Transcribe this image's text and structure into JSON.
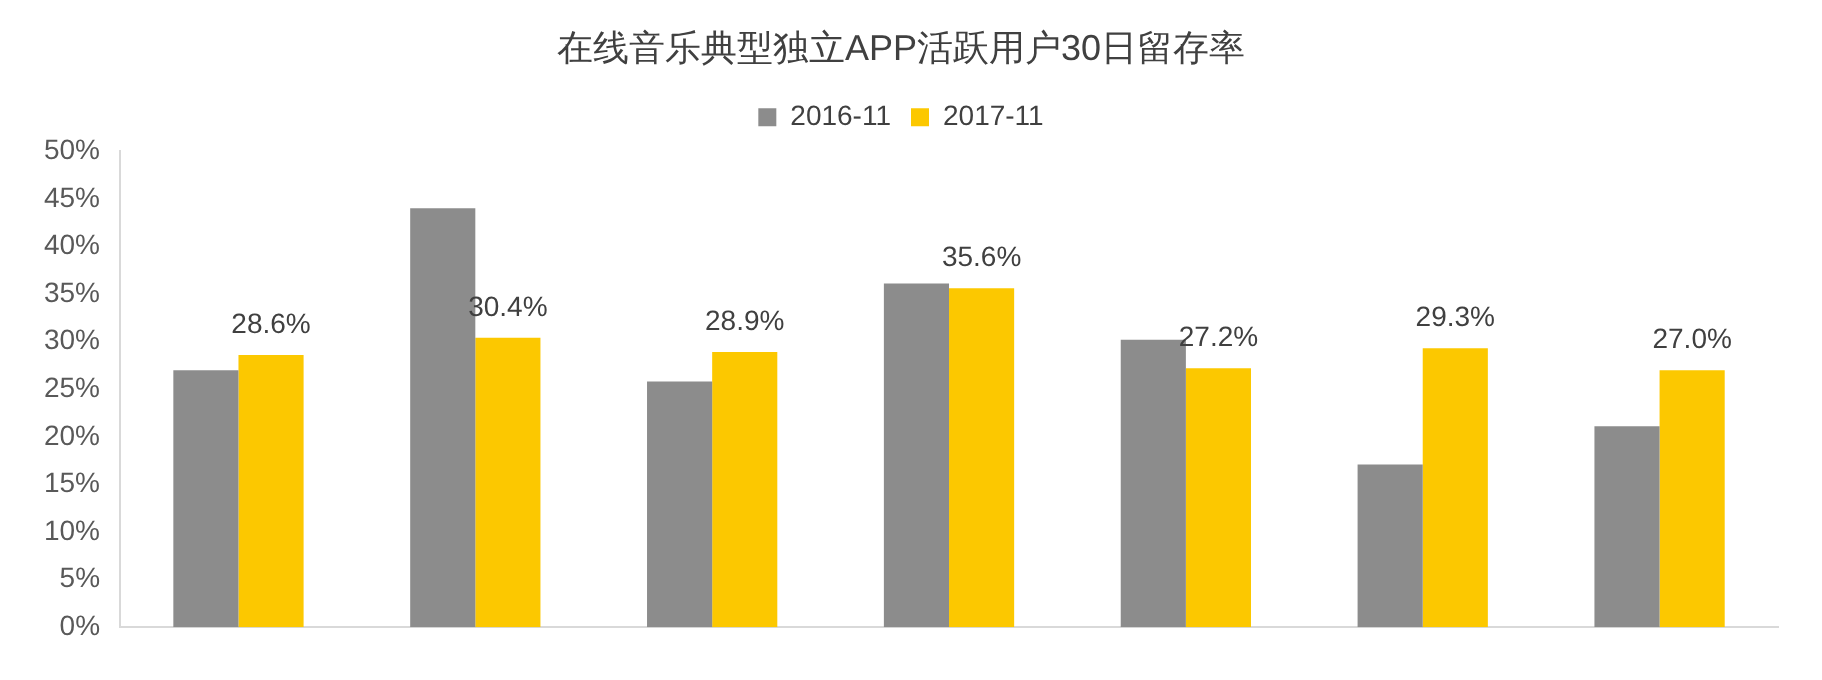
{
  "chart_data": {
    "type": "bar",
    "title": "在线音乐典型独立APP活跃用户30日留存率",
    "categories": [
      null,
      null,
      null,
      null,
      null,
      null,
      null
    ],
    "series": [
      {
        "name": "2016-11",
        "color": "#8c8c8c",
        "values": [
          27.0,
          44.0,
          25.8,
          36.1,
          30.2,
          17.1,
          21.1
        ]
      },
      {
        "name": "2017-11",
        "color": "#fcc800",
        "values": [
          28.6,
          30.4,
          28.9,
          35.6,
          27.2,
          29.3,
          27.0
        ],
        "value_labels": [
          "28.6%",
          "30.4%",
          "28.9%",
          "35.6%",
          "27.2%",
          "29.3%",
          "27.0%"
        ]
      }
    ],
    "ylim": [
      0,
      50
    ],
    "yticks": [
      {
        "value": 0,
        "label": "0%"
      },
      {
        "value": 5,
        "label": "5%"
      },
      {
        "value": 10,
        "label": "10%"
      },
      {
        "value": 15,
        "label": "15%"
      },
      {
        "value": 20,
        "label": "20%"
      },
      {
        "value": 25,
        "label": "25%"
      },
      {
        "value": 30,
        "label": "30%"
      },
      {
        "value": 35,
        "label": "35%"
      },
      {
        "value": 40,
        "label": "40%"
      },
      {
        "value": 45,
        "label": "45%"
      },
      {
        "value": 50,
        "label": "50%"
      }
    ],
    "grid": false,
    "legend": "top",
    "tick_labels": "y"
  }
}
